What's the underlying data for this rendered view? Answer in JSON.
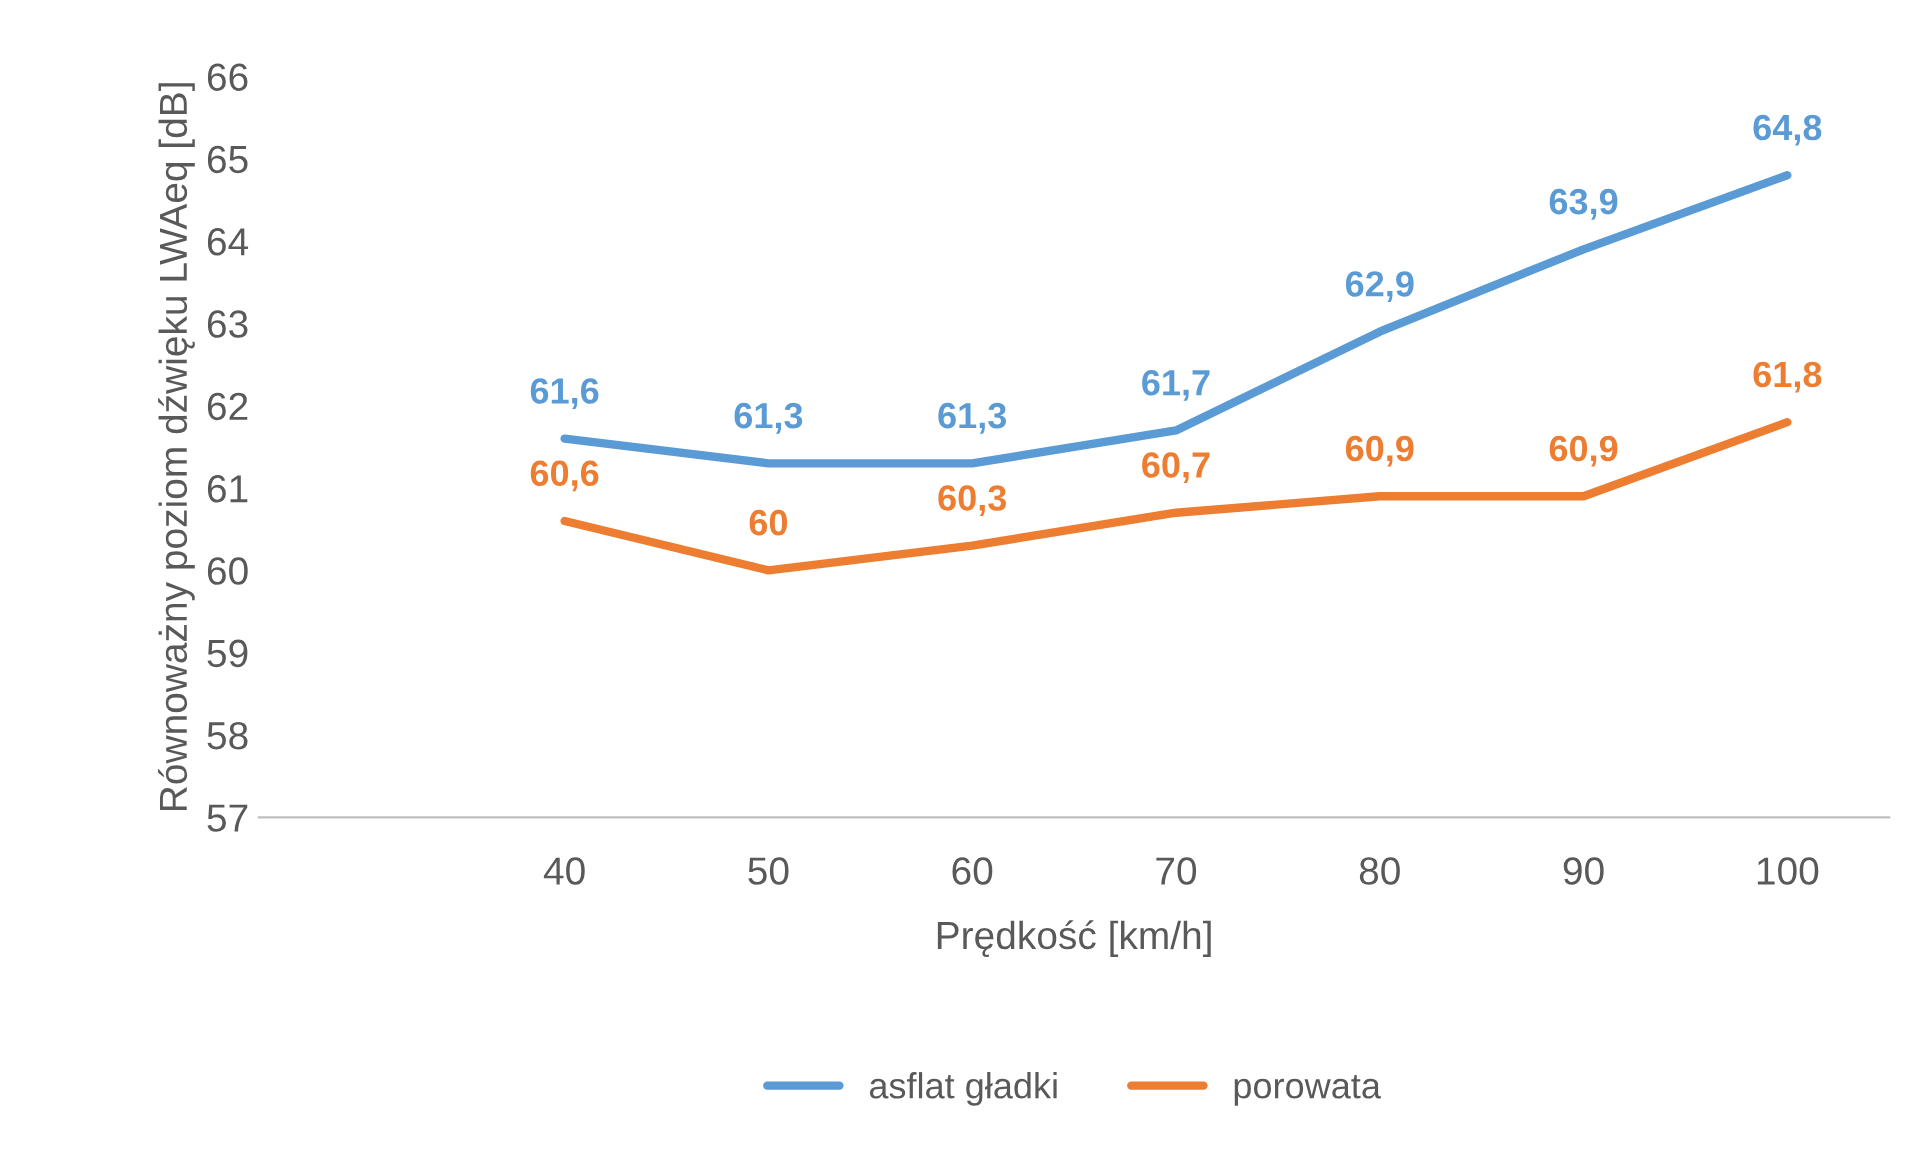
{
  "chart_data": {
    "type": "line",
    "xlabel": "Prędkość [km/h]",
    "ylabel": "Równoważny poziom dźwięku LWAeq [dB]",
    "categories": [
      null,
      "40",
      "50",
      "60",
      "70",
      "80",
      "90",
      "100"
    ],
    "series": [
      {
        "name": "asflat gładki",
        "color": "#5b9bd5",
        "values": [
          null,
          61.6,
          61.3,
          61.3,
          61.7,
          62.9,
          63.9,
          64.8
        ],
        "value_labels": [
          null,
          "61,6",
          "61,3",
          "61,3",
          "61,7",
          "62,9",
          "63,9",
          "64,8"
        ]
      },
      {
        "name": "porowata",
        "color": "#ed7d31",
        "values": [
          null,
          60.6,
          60,
          60.3,
          60.7,
          60.9,
          60.9,
          61.8
        ],
        "value_labels": [
          null,
          "60,6",
          "60",
          "60,3",
          "60,7",
          "60,9",
          "60,9",
          "61,8"
        ]
      }
    ],
    "ylim": [
      57,
      66
    ],
    "yticks": [
      57,
      58,
      59,
      60,
      61,
      62,
      63,
      64,
      65,
      66
    ],
    "grid": false,
    "legend": "bottom",
    "marker": "none",
    "line_style": "solid"
  }
}
